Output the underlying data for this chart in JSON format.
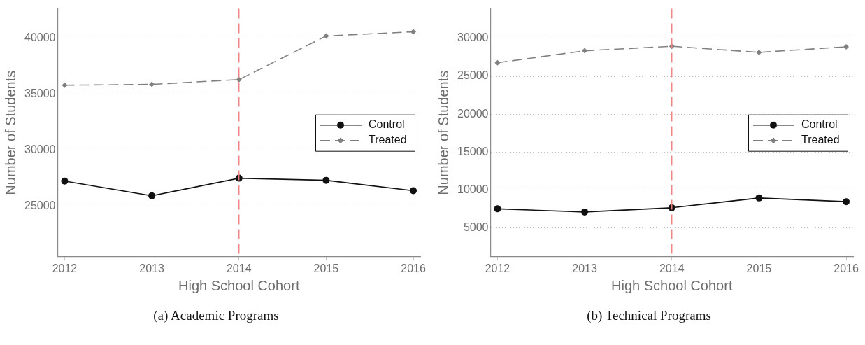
{
  "chart_data": [
    {
      "type": "line",
      "title": "(a) Academic Programs",
      "xlabel": "High School Cohort",
      "ylabel": "Number of Students",
      "x": [
        2012,
        2013,
        2014,
        2015,
        2016
      ],
      "series": [
        {
          "name": "Control",
          "color": "#111111",
          "marker": "circle",
          "line_style": "solid",
          "values": [
            27240,
            25930,
            27500,
            27310,
            26380
          ]
        },
        {
          "name": "Treated",
          "color": "#808080",
          "marker": "diamond",
          "line_style": "dashed",
          "values": [
            35790,
            35860,
            36290,
            40170,
            40550
          ]
        }
      ],
      "xlim": [
        2011.92,
        2016.08
      ],
      "xticks": [
        2012,
        2013,
        2014,
        2015,
        2016
      ],
      "ylim": [
        20500,
        42600
      ],
      "yticks": [
        25000,
        30000,
        35000,
        40000
      ],
      "ref_lines": [
        {
          "axis": "x",
          "value": 2014,
          "color": "#f08080",
          "line_style": "dashed"
        }
      ],
      "grid": "y",
      "legend": "right"
    },
    {
      "type": "line",
      "title": "(b) Technical Programs",
      "xlabel": "High School Cohort",
      "ylabel": "Number of Students",
      "x": [
        2012,
        2013,
        2014,
        2015,
        2016
      ],
      "series": [
        {
          "name": "Control",
          "color": "#111111",
          "marker": "circle",
          "line_style": "solid",
          "values": [
            7520,
            7100,
            7660,
            8950,
            8460
          ]
        },
        {
          "name": "Treated",
          "color": "#808080",
          "marker": "diamond",
          "line_style": "dashed",
          "values": [
            26780,
            28360,
            28950,
            28150,
            28880
          ]
        }
      ],
      "xlim": [
        2011.92,
        2016.08
      ],
      "xticks": [
        2012,
        2013,
        2014,
        2015,
        2016
      ],
      "ylim": [
        1200,
        33900
      ],
      "yticks": [
        5000,
        10000,
        15000,
        20000,
        25000,
        30000
      ],
      "ref_lines": [
        {
          "axis": "x",
          "value": 2014,
          "color": "#f08080",
          "line_style": "dashed"
        }
      ],
      "grid": "y",
      "legend": "right"
    }
  ]
}
